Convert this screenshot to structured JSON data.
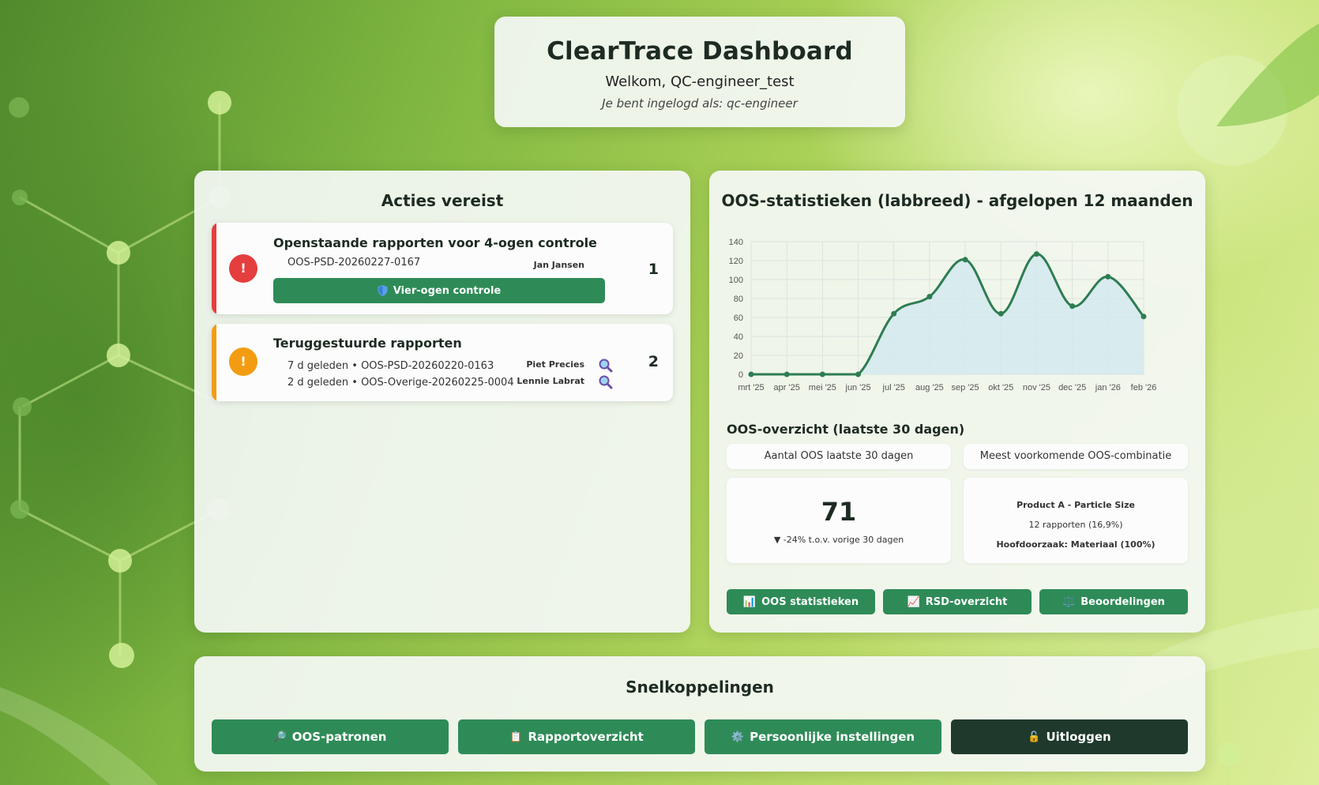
{
  "header": {
    "title": "ClearTrace Dashboard",
    "welcome": "Welkom, QC-engineer_test",
    "logged_in_as": "Je bent ingelogd als: qc-engineer"
  },
  "actions": {
    "heading": "Acties vereist",
    "pending_review": {
      "title": "Openstaande rapporten voor 4-ogen controle",
      "count": "1",
      "report": "OOS-PSD-20260227-0167",
      "person": "Jan Jansen",
      "button_label": "Vier-ogen controle",
      "badge": "!",
      "color": "#e53e3e"
    },
    "returned": {
      "title": "Teruggestuurde rapporten",
      "count": "2",
      "badge": "!",
      "color": "#f39c12",
      "items": [
        {
          "text": "7 d geleden • OOS-PSD-20260220-0163",
          "person": "Piet Precies"
        },
        {
          "text": "2 d geleden • OOS-Overige-20260225-0004",
          "person": "Lennie Labrat"
        }
      ]
    }
  },
  "stats": {
    "heading": "OOS-statistieken (labbreed) - afgelopen 12 maanden",
    "overview_title": "OOS-overzicht (laatste 30 dagen)",
    "count_label": "Aantal OOS laatste 30 dagen",
    "count_value": "71",
    "count_change": "▼ -24% t.o.v. vorige 30 dagen",
    "combo_label": "Meest voorkomende OOS-combinatie",
    "combo_name": "Product A - Particle Size",
    "combo_reports": "12 rapporten (16,9%)",
    "combo_cause": "Hoofdoorzaak: Materiaal (100%)",
    "buttons": [
      {
        "icon": "📊",
        "label": "OOS statistieken"
      },
      {
        "icon": "📈",
        "label": "RSD-overzicht"
      },
      {
        "icon": "⚖️",
        "label": "Beoordelingen"
      }
    ]
  },
  "chart_data": {
    "type": "area",
    "title": "",
    "xlabel": "",
    "ylabel": "",
    "categories": [
      "mrt '25",
      "apr '25",
      "mei '25",
      "jun '25",
      "jul '25",
      "aug '25",
      "sep '25",
      "okt '25",
      "nov '25",
      "dec '25",
      "jan '26",
      "feb '26"
    ],
    "values": [
      0,
      0,
      0,
      0,
      64,
      82,
      121,
      64,
      127,
      72,
      103,
      61
    ],
    "ylim": [
      0,
      140
    ],
    "yticks": [
      0,
      20,
      40,
      60,
      80,
      100,
      120,
      140
    ],
    "grid": true,
    "line_color": "#2e7d52",
    "fill_color": "#d2e8ef"
  },
  "links": {
    "heading": "Snelkoppelingen",
    "buttons": [
      {
        "icon": "🔎",
        "label": "OOS-patronen"
      },
      {
        "icon": "📋",
        "label": "Rapportoverzicht"
      },
      {
        "icon": "⚙️",
        "label": "Persoonlijke instellingen"
      },
      {
        "icon": "🔓",
        "label": "Uitloggen"
      }
    ],
    "button_color": "#2e8b57",
    "logout_color": "#1f3a2c"
  }
}
